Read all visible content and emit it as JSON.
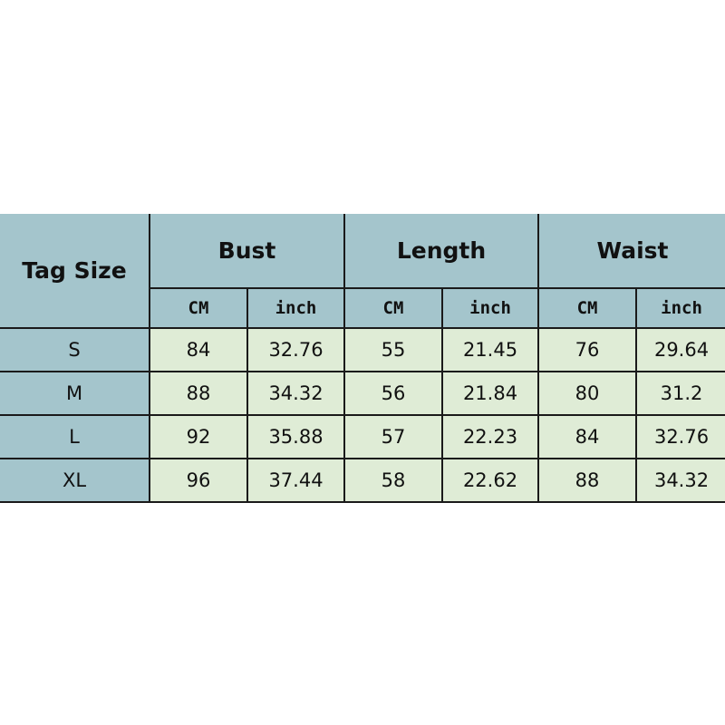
{
  "header": {
    "tag_size": "Tag Size",
    "groups": [
      "Bust",
      "Length",
      "Waist"
    ],
    "units": [
      "CM",
      "inch"
    ]
  },
  "rows": [
    {
      "size": "S",
      "values": [
        "84",
        "32.76",
        "55",
        "21.45",
        "76",
        "29.64"
      ]
    },
    {
      "size": "M",
      "values": [
        "88",
        "34.32",
        "56",
        "21.84",
        "80",
        "31.2"
      ]
    },
    {
      "size": "L",
      "values": [
        "92",
        "35.88",
        "57",
        "22.23",
        "84",
        "32.76"
      ]
    },
    {
      "size": "XL",
      "values": [
        "96",
        "37.44",
        "58",
        "22.62",
        "88",
        "34.32"
      ]
    }
  ],
  "colors": {
    "header": "#a4c5cc",
    "cell": "#dfecd6",
    "border": "#1a1a1a"
  }
}
